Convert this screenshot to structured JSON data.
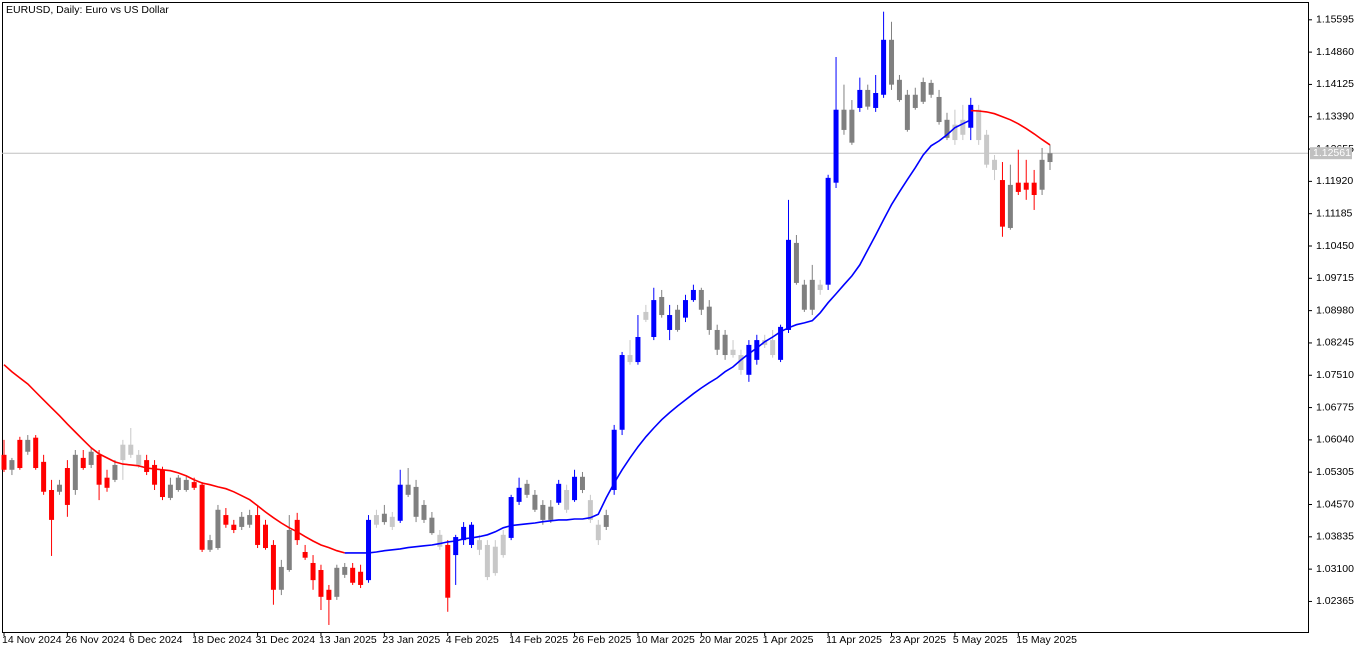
{
  "chart_data": {
    "type": "candlestick",
    "title": "EURUSD, Daily:  Euro vs US Dollar",
    "x": [
      "14 Nov 2024",
      null,
      null,
      null,
      null,
      null,
      null,
      null,
      "26 Nov 2024",
      null,
      null,
      null,
      null,
      null,
      null,
      null,
      "6 Dec 2024",
      null,
      null,
      null,
      null,
      null,
      null,
      null,
      "18 Dec 2024",
      null,
      null,
      null,
      null,
      null,
      null,
      null,
      "31 Dec 2024",
      null,
      null,
      null,
      null,
      null,
      null,
      null,
      "13 Jan 2025",
      null,
      null,
      null,
      null,
      null,
      null,
      null,
      "23 Jan 2025",
      null,
      null,
      null,
      null,
      null,
      null,
      null,
      "4 Feb 2025",
      null,
      null,
      null,
      null,
      null,
      null,
      null,
      "14 Feb 2025",
      null,
      null,
      null,
      null,
      null,
      null,
      null,
      "26 Feb 2025",
      null,
      null,
      null,
      null,
      null,
      null,
      null,
      "10 Mar 2025",
      null,
      null,
      null,
      null,
      null,
      null,
      null,
      "20 Mar 2025",
      null,
      null,
      null,
      null,
      null,
      null,
      null,
      "1 Apr 2025",
      null,
      null,
      null,
      null,
      null,
      null,
      null,
      "11 Apr 2025",
      null,
      null,
      null,
      null,
      null,
      null,
      null,
      "23 Apr 2025",
      null,
      null,
      null,
      null,
      null,
      null,
      null,
      "5 May 2025",
      null,
      null,
      null,
      null,
      null,
      null,
      null,
      "15 May 2025",
      null,
      null,
      null,
      null
    ],
    "open": [
      1.057,
      1.0536,
      1.0604,
      1.0577,
      1.0609,
      1.0554,
      1.049,
      1.0486,
      1.054,
      1.049,
      1.0563,
      1.0547,
      1.057,
      1.0518,
      1.0513,
      1.0558,
      1.0593,
      1.057,
      1.0558,
      1.0547,
      1.0536,
      1.0472,
      1.049,
      1.049,
      1.0508,
      1.0502,
      1.0354,
      1.0358,
      1.0433,
      1.0411,
      1.0406,
      1.0411,
      1.0433,
      1.0411,
      1.0365,
      1.0263,
      1.0308,
      1.0422,
      1.0349,
      1.0324,
      1.0308,
      1.0263,
      1.0247,
      1.0297,
      1.0313,
      1.0304,
      1.0285,
      1.0411,
      1.0436,
      1.0406,
      1.042,
      1.0502,
      1.0497,
      1.0456,
      1.0427,
      1.0388,
      1.0365,
      1.0342,
      1.0376,
      1.0365,
      1.0376,
      1.0365,
      1.0301,
      1.0342,
      1.0381,
      1.0463,
      1.0504,
      1.0479,
      1.0456,
      1.0452,
      1.0461,
      1.049,
      1.0467,
      1.052,
      1.0467,
      1.0411,
      1.0433,
      1.049,
      1.0627,
      1.0797,
      1.0781,
      1.0895,
      1.0838,
      1.0929,
      1.0854,
      1.09,
      1.0882,
      1.0922,
      1.0945,
      1.0907,
      1.0854,
      1.0843,
      1.0809,
      1.0797,
      1.0752,
      1.0786,
      1.0831,
      1.0831,
      1.0786,
      1.0854,
      1.1052,
      1.0957,
      1.0968,
      1.0945,
      1.0957,
      1.1189,
      1.1355,
      1.1355,
      1.1359,
      1.14,
      1.1359,
      1.1389,
      1.1514,
      1.1423,
      1.1389,
      1.1389,
      1.1418,
      1.1416,
      1.1384,
      1.1332,
      1.1321,
      1.1298,
      1.1314,
      1.1355,
      1.1298,
      1.1241,
      1.1195,
      1.1086,
      1.1189,
      1.1189,
      1.1189,
      1.1173,
      1.1236
    ],
    "high": [
      1.0604,
      1.0563,
      1.0611,
      1.0615,
      1.0615,
      1.057,
      1.0513,
      1.0513,
      1.0558,
      1.0581,
      1.0581,
      1.0586,
      1.0581,
      1.0536,
      1.0558,
      1.0604,
      1.0631,
      1.0581,
      1.057,
      1.0558,
      1.0543,
      1.0518,
      1.0524,
      1.052,
      1.0518,
      1.0508,
      1.0388,
      1.0456,
      1.0449,
      1.0422,
      1.044,
      1.0445,
      1.0456,
      1.0422,
      1.0376,
      1.0331,
      1.0433,
      1.0438,
      1.0365,
      1.0342,
      1.032,
      1.0274,
      1.032,
      1.0324,
      1.0324,
      1.032,
      1.0433,
      1.0445,
      1.0456,
      1.044,
      1.0536,
      1.054,
      1.0513,
      1.0467,
      1.044,
      1.0399,
      1.0376,
      1.0388,
      1.0417,
      1.0417,
      1.0388,
      1.0376,
      1.0376,
      1.0399,
      1.0479,
      1.0518,
      1.0513,
      1.049,
      1.0467,
      1.0467,
      1.0513,
      1.0502,
      1.0536,
      1.0531,
      1.0479,
      1.0422,
      1.0445,
      1.0638,
      1.0804,
      1.0831,
      1.0888,
      1.0911,
      1.095,
      1.0945,
      1.0911,
      1.0911,
      1.0934,
      1.0957,
      1.095,
      1.0922,
      1.0866,
      1.0854,
      1.0831,
      1.0809,
      1.0831,
      1.0843,
      1.0843,
      1.0854,
      1.0866,
      1.115,
      1.107,
      1.0968,
      1.1002,
      1.0968,
      1.1207,
      1.1475,
      1.1412,
      1.1377,
      1.1428,
      1.1412,
      1.1434,
      1.1578,
      1.1555,
      1.1434,
      1.14,
      1.1405,
      1.1428,
      1.1423,
      1.14,
      1.1348,
      1.1355,
      1.1366,
      1.1382,
      1.1366,
      1.1309,
      1.1252,
      1.1236,
      1.123,
      1.1264,
      1.1241,
      1.1218,
      1.1268,
      1.1275
    ],
    "low": [
      1.0531,
      1.0524,
      1.0536,
      1.057,
      1.0536,
      1.0479,
      1.034,
      1.0479,
      1.0429,
      1.0479,
      1.0536,
      1.054,
      1.0467,
      1.0486,
      1.0508,
      1.0513,
      1.0563,
      1.054,
      1.0524,
      1.049,
      1.0467,
      1.0467,
      1.0486,
      1.0486,
      1.049,
      1.0349,
      1.0349,
      1.0354,
      1.0404,
      1.0392,
      1.0399,
      1.0404,
      1.0358,
      1.0354,
      1.0229,
      1.0251,
      1.0304,
      1.0365,
      1.0331,
      1.0263,
      1.0217,
      1.0183,
      1.024,
      1.029,
      1.0274,
      1.0267,
      1.0279,
      1.0404,
      1.0411,
      1.0399,
      1.0415,
      1.0474,
      1.0417,
      1.0415,
      1.0388,
      1.0354,
      1.0213,
      1.0274,
      1.0365,
      1.0358,
      1.0342,
      1.0285,
      1.0295,
      1.0336,
      1.0376,
      1.0456,
      1.0472,
      1.044,
      1.0411,
      1.0415,
      1.0456,
      1.0438,
      1.0463,
      1.0483,
      1.0415,
      1.0365,
      1.0399,
      1.0479,
      1.0615,
      1.0775,
      1.0775,
      1.0872,
      1.0831,
      1.0882,
      1.0831,
      1.085,
      1.0872,
      1.0918,
      1.0888,
      1.0843,
      1.0797,
      1.0786,
      1.0791,
      1.0752,
      1.0736,
      1.0775,
      1.0813,
      1.0791,
      1.0781,
      1.0847,
      1.0957,
      1.0895,
      1.0888,
      1.0934,
      1.0945,
      1.1177,
      1.1298,
      1.1275,
      1.135,
      1.1355,
      1.135,
      1.1382,
      1.14,
      1.1373,
      1.1305,
      1.1355,
      1.1368,
      1.1382,
      1.1321,
      1.1286,
      1.1275,
      1.1286,
      1.1286,
      1.1275,
      1.1223,
      1.1195,
      1.1066,
      1.1082,
      1.1161,
      1.115,
      1.1127,
      1.1161,
      1.1218
    ],
    "close": [
      1.0536,
      1.0558,
      1.054,
      1.0604,
      1.054,
      1.0486,
      1.0422,
      1.0502,
      1.0456,
      1.057,
      1.054,
      1.0577,
      1.0502,
      1.0495,
      1.0547,
      1.0593,
      1.057,
      1.0547,
      1.0531,
      1.0502,
      1.0474,
      1.0502,
      1.0518,
      1.0513,
      1.0495,
      1.0354,
      1.0376,
      1.0445,
      1.0411,
      1.0399,
      1.0429,
      1.0433,
      1.0365,
      1.0358,
      1.0263,
      1.0315,
      1.0399,
      1.0376,
      1.0336,
      1.0285,
      1.0247,
      1.024,
      1.0313,
      1.0315,
      1.0279,
      1.0274,
      1.0422,
      1.0433,
      1.0417,
      1.0429,
      1.0502,
      1.0479,
      1.0429,
      1.0422,
      1.0392,
      1.0361,
      1.0245,
      1.0383,
      1.0406,
      1.0411,
      1.0354,
      1.0292,
      1.0361,
      1.0388,
      1.0474,
      1.0495,
      1.0479,
      1.0445,
      1.0422,
      1.0422,
      1.0504,
      1.0445,
      1.052,
      1.049,
      1.0422,
      1.0376,
      1.0406,
      1.0627,
      1.0797,
      1.0781,
      1.0838,
      1.0877,
      1.0922,
      1.0888,
      1.0888,
      1.0854,
      1.0922,
      1.0945,
      1.09,
      1.0854,
      1.0809,
      1.0797,
      1.0797,
      1.0763,
      1.082,
      1.0831,
      1.082,
      1.0797,
      1.0861,
      1.1059,
      1.0961,
      1.09,
      1.09,
      1.0957,
      1.12,
      1.1355,
      1.1309,
      1.128,
      1.14,
      1.1362,
      1.1393,
      1.1514,
      1.1412,
      1.1377,
      1.1309,
      1.1359,
      1.1373,
      1.1389,
      1.1327,
      1.1291,
      1.1286,
      1.1332,
      1.1366,
      1.1286,
      1.123,
      1.1218,
      1.1089,
      1.1184,
      1.1168,
      1.1173,
      1.1161,
      1.1241,
      1.1256
    ],
    "colors": [
      "#ff0000",
      "#808080",
      "#ff0000",
      "#808080",
      "#ff0000",
      "#ff0000",
      "#ff0000",
      "#808080",
      "#ff0000",
      "#808080",
      "#ff0000",
      "#808080",
      "#ff0000",
      "#ff0000",
      "#808080",
      "#c8c8c8",
      "#c8c8c8",
      "#c8c8c8",
      "#ff0000",
      "#ff0000",
      "#ff0000",
      "#808080",
      "#808080",
      "#808080",
      "#ff0000",
      "#ff0000",
      "#808080",
      "#808080",
      "#ff0000",
      "#ff0000",
      "#808080",
      "#808080",
      "#ff0000",
      "#ff0000",
      "#ff0000",
      "#808080",
      "#808080",
      "#ff0000",
      "#ff0000",
      "#ff0000",
      "#ff0000",
      "#ff0000",
      "#808080",
      "#808080",
      "#ff0000",
      "#ff0000",
      "#0000ff",
      "#c8c8c8",
      "#808080",
      "#c8c8c8",
      "#0000ff",
      "#808080",
      "#808080",
      "#808080",
      "#808080",
      "#c8c8c8",
      "#ff0000",
      "#0000ff",
      "#0000ff",
      "#0000ff",
      "#c8c8c8",
      "#c8c8c8",
      "#c8c8c8",
      "#c8c8c8",
      "#0000ff",
      "#0000ff",
      "#808080",
      "#808080",
      "#808080",
      "#808080",
      "#0000ff",
      "#c8c8c8",
      "#0000ff",
      "#808080",
      "#c8c8c8",
      "#c8c8c8",
      "#808080",
      "#0000ff",
      "#0000ff",
      "#c8c8c8",
      "#0000ff",
      "#c8c8c8",
      "#0000ff",
      "#808080",
      "#0000ff",
      "#808080",
      "#0000ff",
      "#0000ff",
      "#808080",
      "#808080",
      "#808080",
      "#808080",
      "#c8c8c8",
      "#c8c8c8",
      "#0000ff",
      "#0000ff",
      "#c8c8c8",
      "#c8c8c8",
      "#0000ff",
      "#0000ff",
      "#808080",
      "#808080",
      "#808080",
      "#c8c8c8",
      "#0000ff",
      "#0000ff",
      "#808080",
      "#808080",
      "#0000ff",
      "#808080",
      "#0000ff",
      "#0000ff",
      "#808080",
      "#808080",
      "#808080",
      "#808080",
      "#808080",
      "#808080",
      "#808080",
      "#808080",
      "#c8c8c8",
      "#c8c8c8",
      "#0000ff",
      "#c8c8c8",
      "#c8c8c8",
      "#c8c8c8",
      "#ff0000",
      "#808080",
      "#ff0000",
      "#ff0000",
      "#ff0000",
      "#808080",
      "#808080"
    ],
    "series": [
      {
        "color": "#ff0000",
        "values": [
          1.0775,
          1.0759,
          1.0745,
          1.0731,
          1.0713,
          1.0695,
          1.0677,
          1.0659,
          1.064,
          1.0622,
          1.0604,
          1.0586,
          1.0572,
          1.0563,
          1.0554,
          1.0549,
          1.0547,
          1.0545,
          1.054,
          1.0538,
          1.0536,
          1.0534,
          1.0529,
          1.0522,
          1.0513,
          1.0506,
          1.0502,
          1.0497,
          1.0493,
          1.0486,
          1.0477,
          1.0468,
          1.0454,
          1.044,
          1.0427,
          1.0415,
          1.0404,
          1.0395,
          1.0384,
          1.0374,
          1.0365,
          1.0359,
          1.0352,
          1.0347,
          null,
          null,
          null,
          null,
          null,
          null,
          null,
          null,
          null,
          null,
          null,
          null,
          null,
          null,
          null,
          null,
          null,
          null,
          null,
          null,
          null,
          null,
          null,
          null,
          null,
          null,
          null,
          null,
          null,
          null,
          null,
          null,
          null,
          null,
          null,
          null,
          null,
          null,
          null,
          null,
          null,
          null,
          null,
          null,
          null,
          null,
          null,
          null,
          null,
          null,
          null,
          null,
          null,
          null,
          null,
          null,
          null,
          null,
          null,
          null,
          null,
          null,
          null,
          null,
          null,
          null,
          null,
          null,
          null,
          null,
          null,
          null,
          null,
          null,
          null,
          null,
          null,
          null,
          1.1353,
          1.1352,
          1.135,
          1.1346,
          1.1339,
          1.1332,
          1.1323,
          1.1312,
          1.13,
          1.1287,
          1.1275
        ]
      },
      {
        "color": "#0000ff",
        "values": [
          null,
          null,
          null,
          null,
          null,
          null,
          null,
          null,
          null,
          null,
          null,
          null,
          null,
          null,
          null,
          null,
          null,
          null,
          null,
          null,
          null,
          null,
          null,
          null,
          null,
          null,
          null,
          null,
          null,
          null,
          null,
          null,
          null,
          null,
          null,
          null,
          null,
          null,
          null,
          null,
          null,
          null,
          null,
          1.0347,
          1.0347,
          1.0347,
          1.0347,
          1.0349,
          1.0352,
          1.0354,
          1.0356,
          1.0359,
          1.0361,
          1.0363,
          1.0365,
          1.0368,
          1.0372,
          1.0374,
          1.0379,
          1.0381,
          1.0384,
          1.0388,
          1.0395,
          1.0404,
          1.0409,
          1.0411,
          1.0413,
          1.0415,
          1.0418,
          1.042,
          1.0422,
          1.0422,
          1.0424,
          1.0424,
          1.0427,
          1.0435,
          1.0472,
          1.0506,
          1.0536,
          1.0563,
          1.0588,
          1.0611,
          1.0631,
          1.065,
          1.0666,
          1.0681,
          1.0695,
          1.0709,
          1.0722,
          1.0734,
          1.0745,
          1.0759,
          1.077,
          1.0786,
          1.08,
          1.0813,
          1.0827,
          1.0838,
          1.085,
          1.0859,
          1.0866,
          1.087,
          1.0875,
          1.0893,
          1.0916,
          1.0936,
          1.0957,
          1.0977,
          1.1002,
          1.1036,
          1.107,
          1.1105,
          1.1139,
          1.1168,
          1.1196,
          1.1223,
          1.1252,
          1.1273,
          1.1284,
          1.1298,
          1.1314,
          1.1323,
          1.1332,
          null,
          null,
          null,
          null,
          null,
          null,
          null,
          null,
          null,
          null
        ]
      }
    ],
    "current_price": 1.12561,
    "ylim": [
      1.0167,
      1.16
    ],
    "yticks": [
      1.15595,
      {
        "value": 1.1486,
        "label": "1.14860"
      },
      1.14125,
      {
        "value": 1.1339,
        "label": "1.13390"
      },
      1.12655,
      {
        "value": 1.1192,
        "label": "1.11920"
      },
      1.11185,
      {
        "value": 1.1045,
        "label": "1.10450"
      },
      1.09715,
      {
        "value": 1.0898,
        "label": "1.08980"
      },
      1.08245,
      {
        "value": 1.0751,
        "label": "1.07510"
      },
      1.06775,
      {
        "value": 1.0604,
        "label": "1.06040"
      },
      1.05305,
      {
        "value": 1.0457,
        "label": "1.04570"
      },
      1.03835,
      {
        "value": 1.031,
        "label": "1.03100"
      },
      1.02365
    ]
  }
}
